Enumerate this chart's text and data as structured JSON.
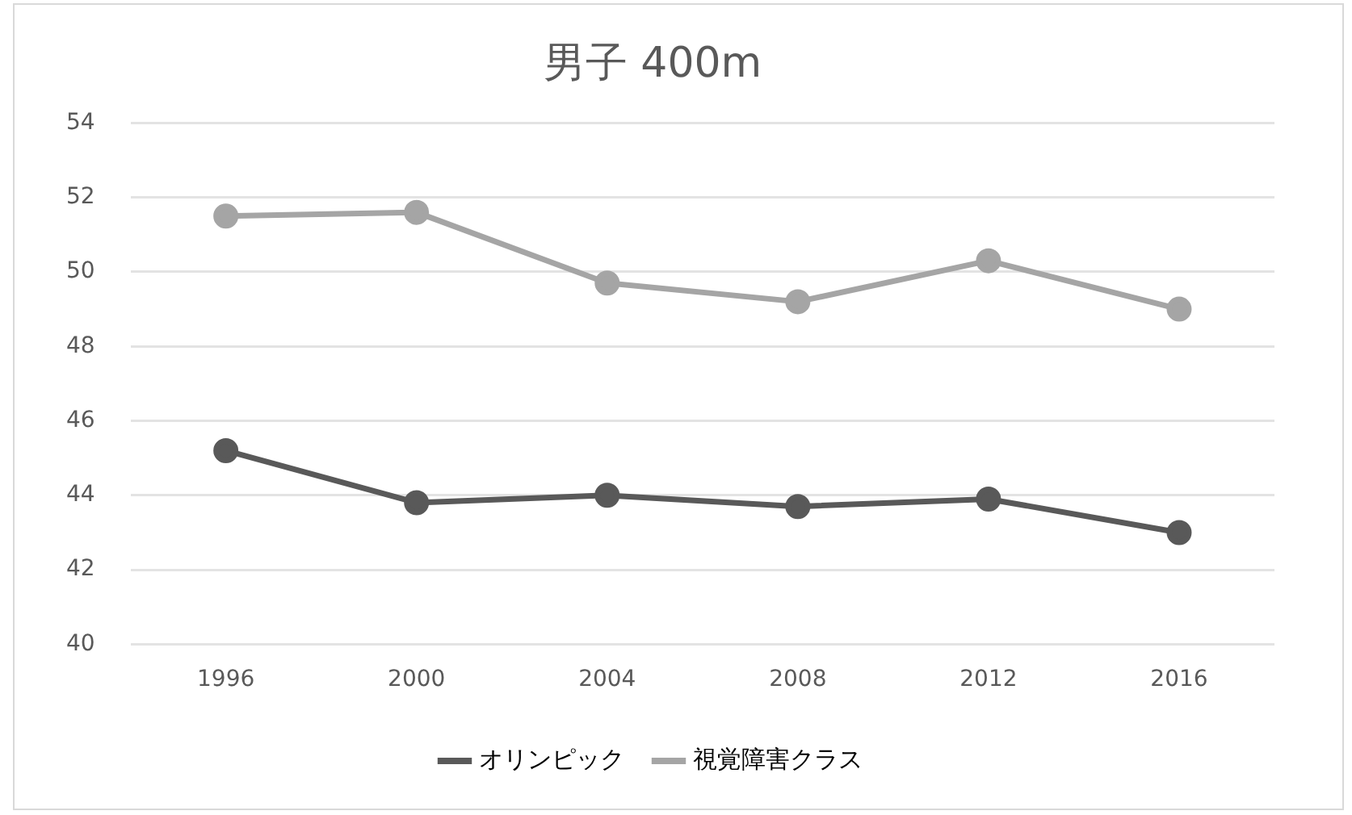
{
  "chart_data": {
    "type": "line",
    "title": "男子 400m",
    "categories": [
      "1996",
      "2000",
      "2004",
      "2008",
      "2012",
      "2016"
    ],
    "series": [
      {
        "name": "オリンピック",
        "color": "#595959",
        "values": [
          45.2,
          43.8,
          44.0,
          43.7,
          43.9,
          43.0
        ]
      },
      {
        "name": "視覚障害クラス",
        "color": "#a5a5a5",
        "values": [
          51.5,
          51.6,
          49.7,
          49.2,
          50.3,
          49.0
        ]
      }
    ],
    "ylim": [
      40,
      54
    ],
    "yticks": [
      40,
      42,
      44,
      46,
      48,
      50,
      52,
      54
    ],
    "grid": "y",
    "legend": "bottom",
    "marker": "circle",
    "line_style": "solid"
  }
}
